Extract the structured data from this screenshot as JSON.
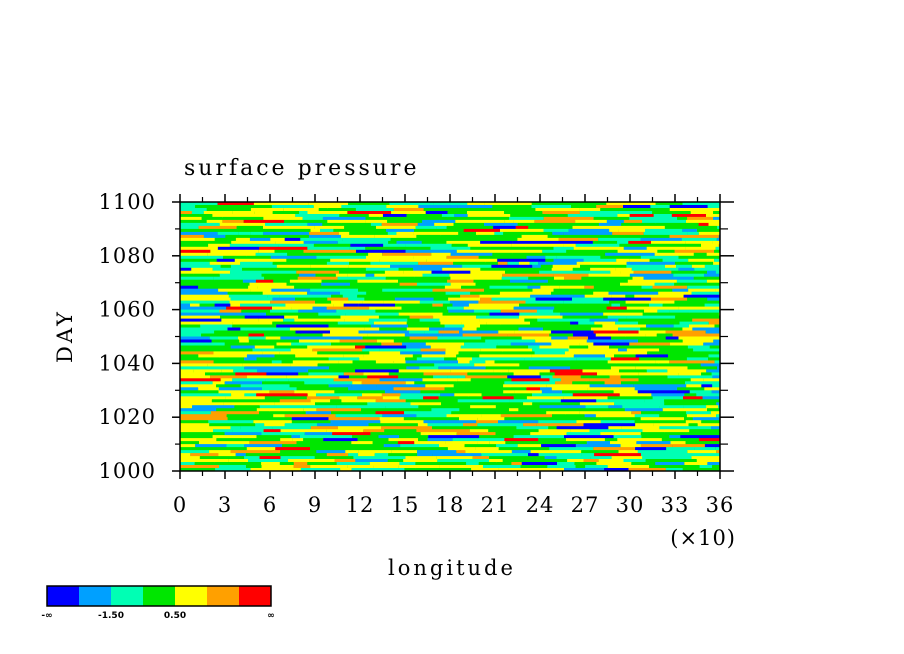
{
  "chart_data": {
    "type": "heatmap",
    "title": "surface pressure",
    "xlabel": "longitude",
    "ylabel": "DAY",
    "x_multiplier_label": "(×10)",
    "xlim": [
      0,
      360
    ],
    "ylim": [
      1000,
      1100
    ],
    "x_tick_labels": [
      "0",
      "3",
      "6",
      "9",
      "12",
      "15",
      "18",
      "21",
      "24",
      "27",
      "30",
      "33",
      "36"
    ],
    "y_tick_labels": [
      "1000",
      "1020",
      "1040",
      "1060",
      "1080",
      "1100"
    ],
    "y_ticks": [
      1000,
      1020,
      1040,
      1060,
      1080,
      1100
    ],
    "x_ticks": [
      0,
      30,
      60,
      90,
      120,
      150,
      180,
      210,
      240,
      270,
      300,
      330,
      360
    ],
    "colorbar": {
      "colors": [
        "#0000ff",
        "#00a0ff",
        "#00ffb4",
        "#00e600",
        "#ffff00",
        "#ffa000",
        "#ff0000"
      ],
      "labels": [
        "-∞",
        "-1.50",
        "0.50",
        "∞"
      ]
    },
    "dominant_levels": [
      "#00e600",
      "#ffff00",
      "#00ffb4"
    ]
  }
}
